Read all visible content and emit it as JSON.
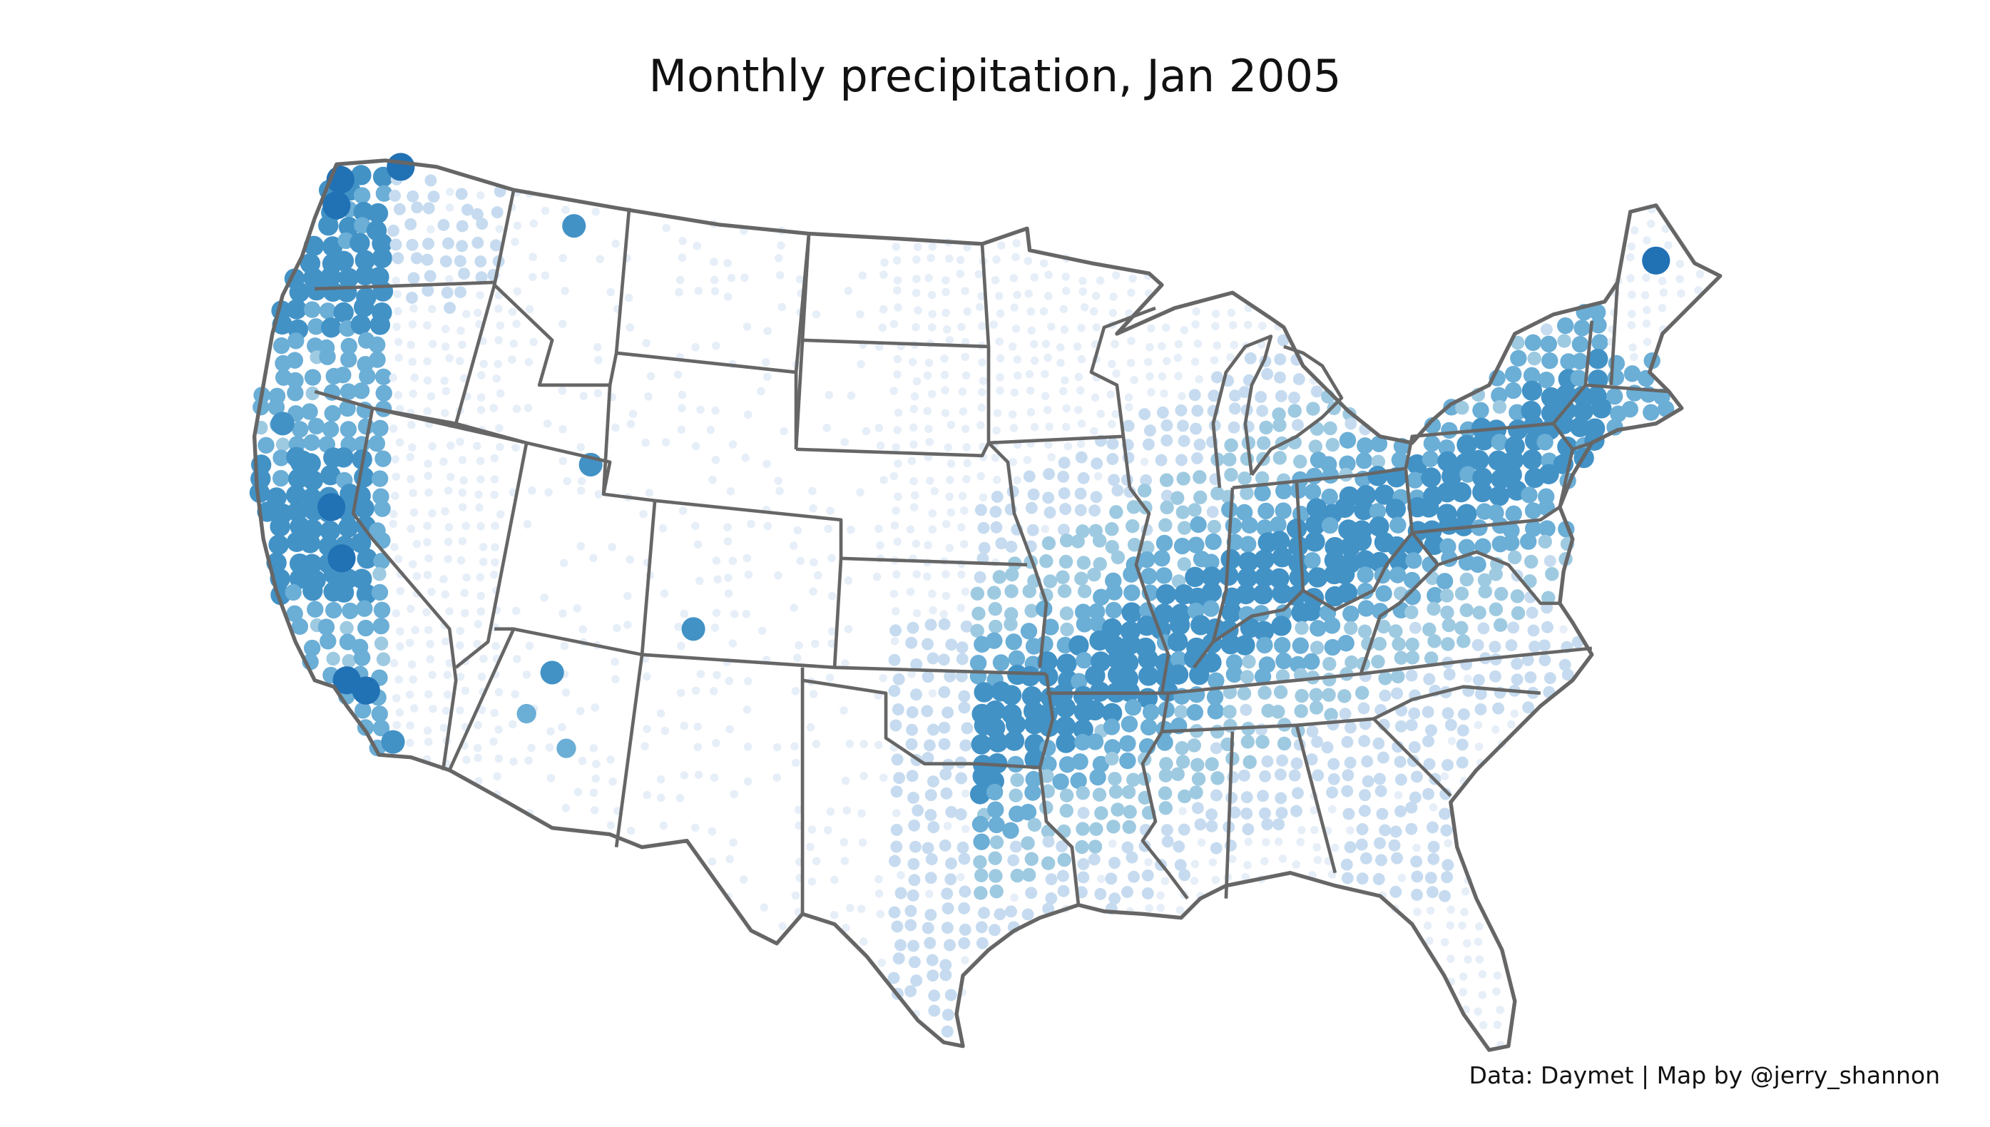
{
  "title": "Monthly precipitation, Jan 2005",
  "credit": "Data: Daymet | Map by @jerry_shannon",
  "palette": [
    "#e6eef8",
    "#c6dbef",
    "#9ecae1",
    "#6baed6",
    "#4292c6",
    "#2171b5"
  ],
  "levels": [
    {
      "level": 0,
      "radius": 9,
      "color": "#e6eef8"
    },
    {
      "level": 1,
      "radius": 13,
      "color": "#c6dbef"
    },
    {
      "level": 2,
      "radius": 15,
      "color": "#9ecae1"
    },
    {
      "level": 3,
      "radius": 18,
      "color": "#6baed6"
    },
    {
      "level": 4,
      "radius": 22,
      "color": "#4292c6"
    },
    {
      "level": 5,
      "radius": 26,
      "color": "#2171b5"
    }
  ]
}
